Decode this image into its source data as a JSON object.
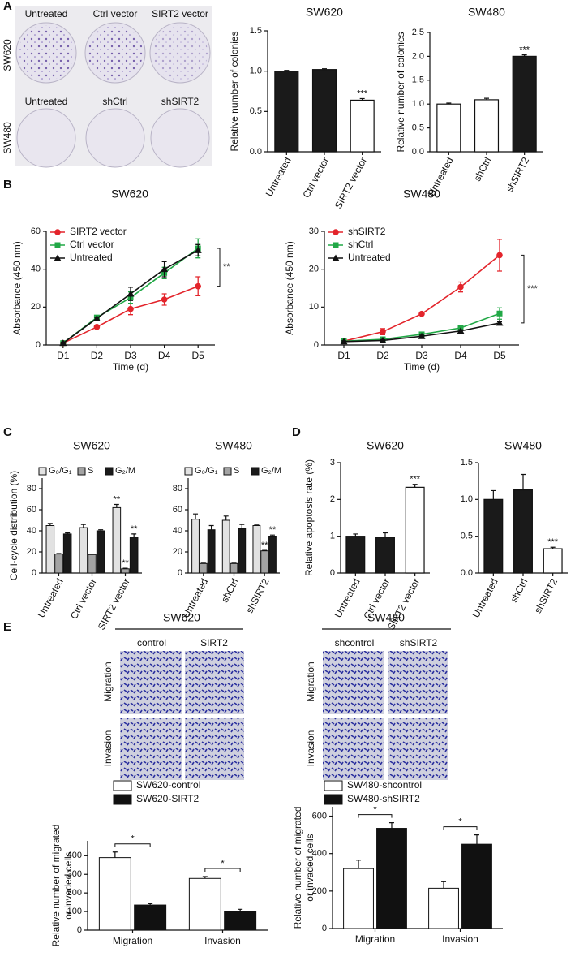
{
  "panel_letters": [
    "A",
    "B",
    "C",
    "D",
    "E"
  ],
  "colony_photos": {
    "row_top": "SW620",
    "columns_top": [
      "Untreated",
      "Ctrl vector",
      "SIRT2 vector"
    ],
    "row_bottom": "SW480",
    "columns_bottom": [
      "Untreated",
      "shCtrl",
      "shSIRT2"
    ]
  },
  "transwell_photos": {
    "groups": [
      {
        "title": "SW620",
        "columns": [
          "control",
          "SIRT2"
        ]
      },
      {
        "title": "SW480",
        "columns": [
          "shcontrol",
          "shSIRT2"
        ]
      }
    ],
    "rows": [
      "Migration",
      "Invasion"
    ]
  },
  "chart_data": [
    {
      "type": "bar",
      "title": "SW620",
      "ylabel": "Relative number of colonies",
      "categories": [
        "Untreated",
        "Ctrl vector",
        "SIRT2 vector"
      ],
      "values": [
        1.0,
        1.02,
        0.64
      ],
      "errors": [
        0.01,
        0.01,
        0.02
      ],
      "colors": [
        "#1a1a1a",
        "#1a1a1a",
        "#ffffff"
      ],
      "significance": [
        null,
        null,
        "***"
      ],
      "ylim": [
        0,
        1.5
      ],
      "yticks": [
        {
          "value": 0,
          "label": "0.0"
        },
        0.5,
        {
          "value": 1,
          "label": "1.0"
        },
        1.5
      ]
    },
    {
      "type": "bar",
      "title": "SW480",
      "ylabel": "Relative number of colonies",
      "categories": [
        "Untreated",
        "shCtrl",
        "shSIRT2"
      ],
      "values": [
        1.0,
        1.09,
        2.0
      ],
      "errors": [
        0.02,
        0.03,
        0.03
      ],
      "colors": [
        "#ffffff",
        "#ffffff",
        "#1a1a1a"
      ],
      "significance": [
        null,
        null,
        "***"
      ],
      "ylim": [
        0,
        2.5
      ],
      "yticks": [
        {
          "value": 0,
          "label": "0.0"
        },
        0.5,
        {
          "value": 1,
          "label": "1.0"
        },
        1.5,
        {
          "value": 2,
          "label": "2.0"
        },
        2.5
      ]
    },
    {
      "type": "line",
      "title": "SW620",
      "xlabel": "Time (d)",
      "ylabel": "Absorbance (450 nm)",
      "categories": [
        "D1",
        "D2",
        "D3",
        "D4",
        "D5"
      ],
      "significance": "**",
      "legend": "top-left",
      "series": [
        {
          "name": "SIRT2 vector",
          "color": "#e3242b",
          "marker": "circle",
          "values": [
            1,
            9.5,
            19,
            24,
            31
          ],
          "errors": [
            0.5,
            0.5,
            3,
            3,
            5
          ]
        },
        {
          "name": "Ctrl vector",
          "color": "#21a846",
          "marker": "square",
          "values": [
            1,
            14.5,
            25,
            38,
            51
          ],
          "errors": [
            0.5,
            0.5,
            3,
            3,
            5
          ]
        },
        {
          "name": "Untreated",
          "color": "#111111",
          "marker": "triangle",
          "values": [
            1,
            14,
            27,
            40,
            50
          ],
          "errors": [
            0.5,
            0.5,
            3.5,
            4,
            3
          ]
        }
      ],
      "ylim": [
        0,
        60
      ],
      "yticks": [
        0,
        20,
        40,
        60
      ]
    },
    {
      "type": "line",
      "title": "SW480",
      "xlabel": "Time (d)",
      "ylabel": "Absorbance (450 nm)",
      "categories": [
        "D1",
        "D2",
        "D3",
        "D4",
        "D5"
      ],
      "significance": "***",
      "legend": "top-left",
      "series": [
        {
          "name": "shSIRT2",
          "color": "#e3242b",
          "marker": "circle",
          "values": [
            1,
            3.5,
            8.2,
            15.3,
            23.7
          ],
          "errors": [
            0.3,
            0.8,
            0.3,
            1.3,
            4.2
          ]
        },
        {
          "name": "shCtrl",
          "color": "#21a846",
          "marker": "square",
          "values": [
            1,
            1.5,
            2.8,
            4.5,
            8.3
          ],
          "errors": [
            0.2,
            0.3,
            0.4,
            0.5,
            1.5
          ]
        },
        {
          "name": "Untreated",
          "color": "#111111",
          "marker": "triangle",
          "values": [
            0.9,
            1.2,
            2.3,
            3.7,
            5.8
          ],
          "errors": [
            0.2,
            0.2,
            0.3,
            0.3,
            0.3
          ]
        }
      ],
      "ylim": [
        0,
        30
      ],
      "yticks": [
        0,
        10,
        20,
        30
      ]
    },
    {
      "type": "grouped_bar",
      "title": "SW620",
      "ylabel": "Cell-cycle distribution (%)",
      "legend": "top",
      "categories": [
        "Untreated",
        "Ctrl vector",
        "SIRT2 vector"
      ],
      "series": [
        {
          "name": "G₀/G₁",
          "color": "#e2e2e2",
          "values": [
            45,
            43,
            62
          ],
          "errors": [
            2,
            3,
            3
          ],
          "significance": [
            null,
            null,
            "**"
          ]
        },
        {
          "name": "S",
          "color": "#a3a3a3",
          "values": [
            18,
            17.5,
            4
          ],
          "errors": [
            0.5,
            0.5,
            0.5
          ],
          "significance": [
            null,
            null,
            "**"
          ]
        },
        {
          "name": "G₂/M",
          "color": "#1a1a1a",
          "values": [
            37,
            40,
            34
          ],
          "errors": [
            1,
            1,
            3
          ],
          "significance": [
            null,
            null,
            "**"
          ]
        }
      ],
      "ylim": [
        0,
        90
      ],
      "yticks": [
        0,
        20,
        40,
        60,
        80
      ]
    },
    {
      "type": "grouped_bar",
      "title": "SW480",
      "legend": "top",
      "categories": [
        "Untreated",
        "shCtrl",
        "shSIRT2"
      ],
      "series": [
        {
          "name": "G₀/G₁",
          "color": "#e2e2e2",
          "values": [
            51,
            50,
            45
          ],
          "errors": [
            5,
            4,
            0.5
          ],
          "significance": [
            null,
            null,
            null
          ]
        },
        {
          "name": "S",
          "color": "#a3a3a3",
          "values": [
            9,
            9,
            21
          ],
          "errors": [
            0.3,
            0.3,
            0.5
          ],
          "significance": [
            null,
            null,
            "**"
          ]
        },
        {
          "name": "G₂/M",
          "color": "#1a1a1a",
          "values": [
            41,
            42,
            35
          ],
          "errors": [
            4,
            4,
            1
          ],
          "significance": [
            null,
            null,
            "**"
          ]
        }
      ],
      "ylim": [
        0,
        90
      ],
      "yticks": [
        0,
        20,
        40,
        60,
        80
      ]
    },
    {
      "type": "bar",
      "title": "SW620",
      "ylabel": "Relative apoptosis rate (%)",
      "categories": [
        "Untreated",
        "Ctrl vector",
        "SIRT2 vector"
      ],
      "values": [
        1.0,
        0.97,
        2.33
      ],
      "errors": [
        0.06,
        0.12,
        0.08
      ],
      "colors": [
        "#1a1a1a",
        "#1a1a1a",
        "#ffffff"
      ],
      "significance": [
        null,
        null,
        "***"
      ],
      "ylim": [
        0,
        3
      ],
      "yticks": [
        0,
        1,
        2,
        3
      ]
    },
    {
      "type": "bar",
      "title": "SW480",
      "categories": [
        "Untreated",
        "shCtrl",
        "shSIRT2"
      ],
      "values": [
        1.0,
        1.13,
        0.33
      ],
      "errors": [
        0.12,
        0.21,
        0.02
      ],
      "colors": [
        "#1a1a1a",
        "#1a1a1a",
        "#ffffff"
      ],
      "significance": [
        null,
        null,
        "***"
      ],
      "ylim": [
        0,
        1.5
      ],
      "yticks": [
        {
          "value": 0,
          "label": "0.0"
        },
        0.5,
        {
          "value": 1,
          "label": "1.0"
        },
        1.5
      ]
    },
    {
      "type": "grouped_bar",
      "ylabel": [
        "Relative number of migrated",
        "or invaded cells"
      ],
      "legend": "top",
      "categories": [
        "Migration",
        "Invasion"
      ],
      "significance": [
        "*",
        "*"
      ],
      "series": [
        {
          "name": "SW620-control",
          "color": "#ffffff",
          "values": [
            390,
            278
          ],
          "errors": [
            30,
            10
          ]
        },
        {
          "name": "SW620-SIRT2",
          "color": "#111111",
          "values": [
            135,
            100
          ],
          "errors": [
            7,
            12
          ]
        }
      ],
      "ylim": [
        0,
        480
      ],
      "yticks": [
        0,
        100,
        200,
        300,
        400
      ]
    },
    {
      "type": "grouped_bar",
      "ylabel": [
        "Relative number of migrated",
        "or invaded cells"
      ],
      "legend": "top",
      "categories": [
        "Migration",
        "Invasion"
      ],
      "significance": [
        "*",
        "*"
      ],
      "series": [
        {
          "name": "SW480-shcontrol",
          "color": "#ffffff",
          "values": [
            320,
            215
          ],
          "errors": [
            45,
            35
          ]
        },
        {
          "name": "SW480-shSIRT2",
          "color": "#111111",
          "values": [
            535,
            450
          ],
          "errors": [
            30,
            50
          ]
        }
      ],
      "ylim": [
        0,
        650
      ],
      "yticks": [
        0,
        200,
        400,
        600
      ]
    }
  ]
}
